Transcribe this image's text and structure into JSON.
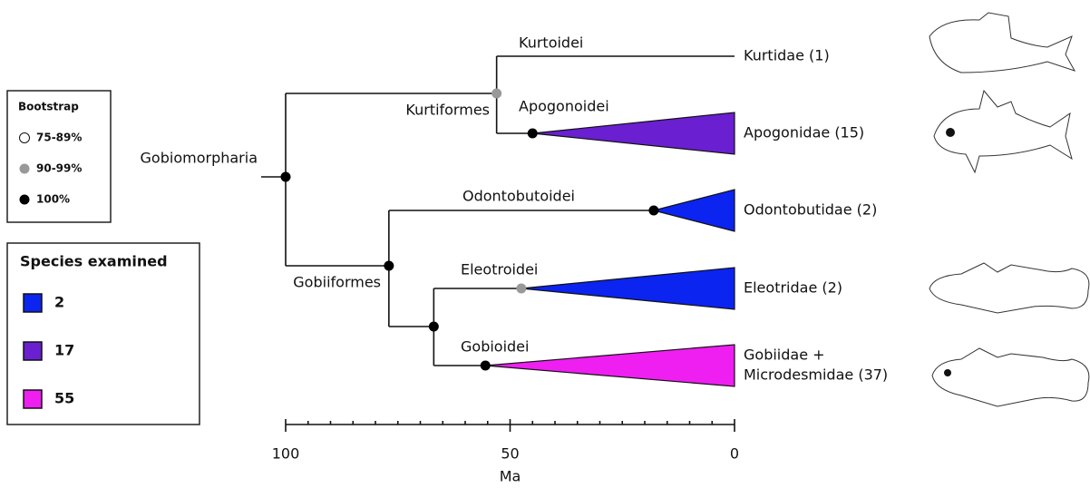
{
  "legend_bootstrap": {
    "title": "Bootstrap",
    "items": [
      {
        "label": "75-89%",
        "fill": "#ffffff"
      },
      {
        "label": "90-99%",
        "fill": "#999999"
      },
      {
        "label": "100%",
        "fill": "#000000"
      }
    ]
  },
  "legend_species": {
    "title": "Species examined",
    "items": [
      {
        "label": "2",
        "color": "#0b24f0"
      },
      {
        "label": "17",
        "color": "#6a1fd0"
      },
      {
        "label": "55",
        "color": "#ee1ff0"
      }
    ]
  },
  "axis": {
    "label": "Ma",
    "xlim": [
      100,
      0
    ],
    "xticks": [
      100,
      50,
      0
    ],
    "minor_ticks": [
      95,
      90,
      85,
      80,
      75,
      70,
      65,
      60,
      55,
      45,
      40,
      35,
      30,
      25,
      20,
      15,
      10,
      5
    ]
  },
  "clade_labels": [
    "Gobiomorpharia",
    "Kurtiformes",
    "Kurtoidei",
    "Apogonoidei",
    "Gobiiformes",
    "Odontobutoidei",
    "Eleotroidei",
    "Gobioidei"
  ],
  "nodes": [
    {
      "age": 100,
      "fill": "#000000"
    },
    {
      "age": 53,
      "fill": "#999999"
    },
    {
      "age": 45,
      "fill": "#000000"
    },
    {
      "age": 77,
      "fill": "#000000"
    },
    {
      "age": 18,
      "fill": "#000000"
    },
    {
      "age": 67,
      "fill": "#000000"
    },
    {
      "age": 47.5,
      "fill": "#999999"
    },
    {
      "age": 55.5,
      "fill": "#000000"
    }
  ],
  "tips": [
    {
      "label": [
        "Kurtidae (1)"
      ],
      "color": null
    },
    {
      "label": [
        "Apogonidae (15)"
      ],
      "color": "#6a1fd0"
    },
    {
      "label": [
        "Odontobutidae (2)"
      ],
      "color": "#0b24f0"
    },
    {
      "label": [
        "Eleotridae (2)"
      ],
      "color": "#0b24f0"
    },
    {
      "label": [
        "Gobiidae +",
        "Microdesmidae (37)"
      ],
      "color": "#ee1ff0"
    }
  ]
}
